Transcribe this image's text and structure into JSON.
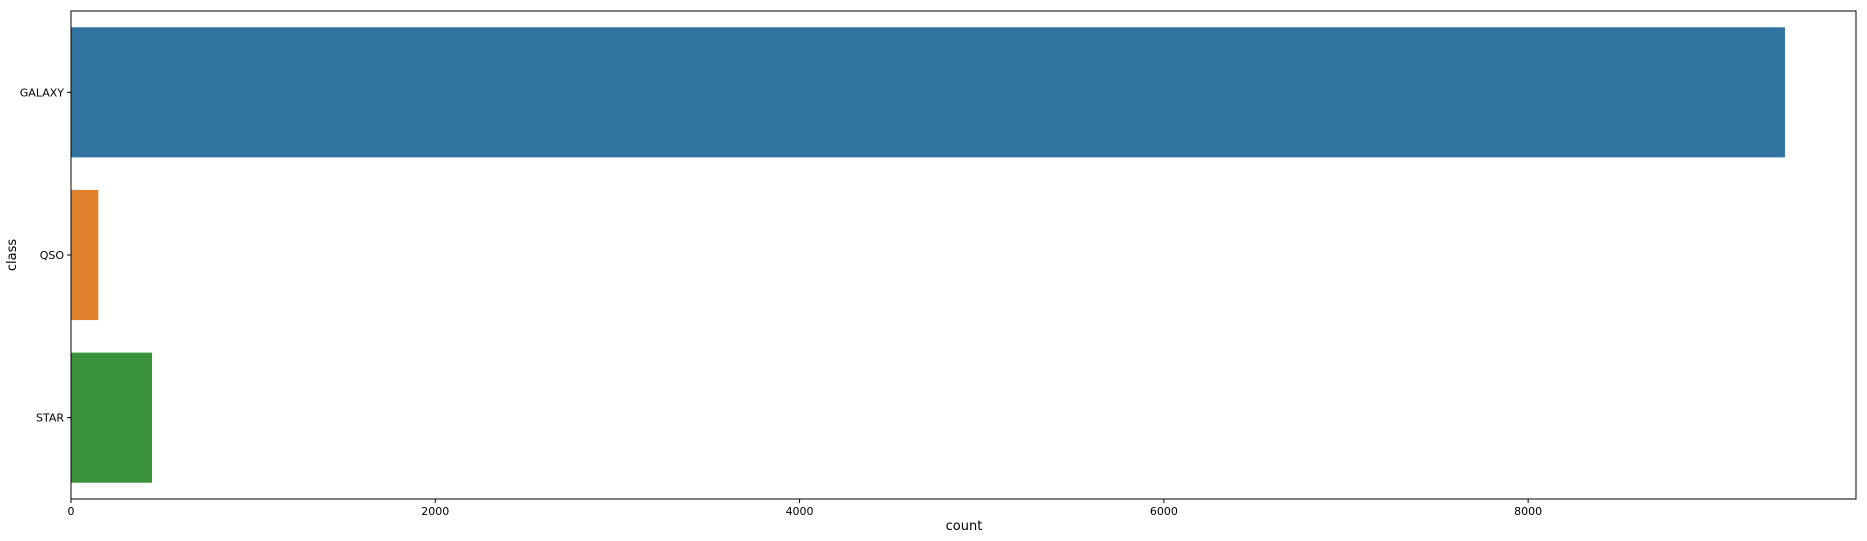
{
  "chart_data": {
    "type": "bar",
    "orientation": "horizontal",
    "categories": [
      "GALAXY",
      "QSO",
      "STAR"
    ],
    "values": [
      9410,
      150,
      445
    ],
    "colors": [
      "#3274a1",
      "#e1812c",
      "#3a923a"
    ],
    "xlabel": "count",
    "ylabel": "class",
    "xlim": [
      0,
      9800
    ],
    "xticks": [
      0,
      2000,
      4000,
      6000,
      8000
    ],
    "xtick_labels": [
      "0",
      "2000",
      "4000",
      "6000",
      "8000"
    ],
    "grid": false,
    "legend": "none"
  }
}
